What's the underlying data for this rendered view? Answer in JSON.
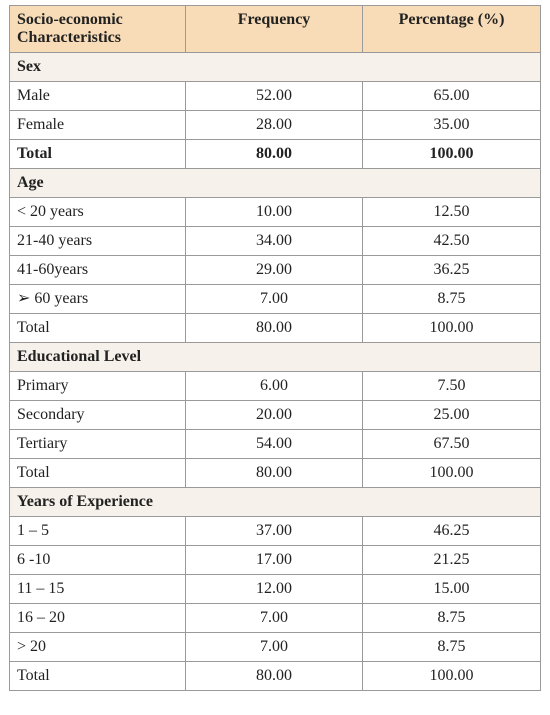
{
  "header": {
    "col1": "Socio-economic Characteristics",
    "col2": "Frequency",
    "col3": "Percentage (%)"
  },
  "sections": [
    {
      "title": "Sex",
      "rows": [
        {
          "label": "Male",
          "frequency": "52.00",
          "percentage": "65.00"
        },
        {
          "label": "Female",
          "frequency": "28.00",
          "percentage": "35.00"
        },
        {
          "label": "Total",
          "frequency": "80.00",
          "percentage": "100.00"
        }
      ]
    },
    {
      "title": "Age",
      "rows": [
        {
          "label": "< 20 years",
          "frequency": "10.00",
          "percentage": "12.50"
        },
        {
          "label": "21-40 years",
          "frequency": "34.00",
          "percentage": "42.50"
        },
        {
          "label": "41-60years",
          "frequency": "29.00",
          "percentage": "36.25"
        },
        {
          "label": "➢ 60 years",
          "frequency": "7.00",
          "percentage": "8.75"
        },
        {
          "label": "Total",
          "frequency": "80.00",
          "percentage": "100.00"
        }
      ]
    },
    {
      "title": "Educational Level",
      "rows": [
        {
          "label": "Primary",
          "frequency": "6.00",
          "percentage": "7.50"
        },
        {
          "label": "Secondary",
          "frequency": "20.00",
          "percentage": "25.00"
        },
        {
          "label": "Tertiary",
          "frequency": "54.00",
          "percentage": "67.50"
        },
        {
          "label": "Total",
          "frequency": "80.00",
          "percentage": "100.00"
        }
      ]
    },
    {
      "title": "Years of Experience",
      "rows": [
        {
          "label": "1 – 5",
          "frequency": "37.00",
          "percentage": "46.25"
        },
        {
          "label": "6 -10",
          "frequency": "17.00",
          "percentage": "21.25"
        },
        {
          "label": "11 – 15",
          "frequency": "12.00",
          "percentage": "15.00"
        },
        {
          "label": "16 – 20",
          "frequency": "7.00",
          "percentage": "8.75"
        },
        {
          "label": "> 20",
          "frequency": "7.00",
          "percentage": "8.75"
        },
        {
          "label": "Total",
          "frequency": "80.00",
          "percentage": "100.00"
        }
      ]
    }
  ]
}
